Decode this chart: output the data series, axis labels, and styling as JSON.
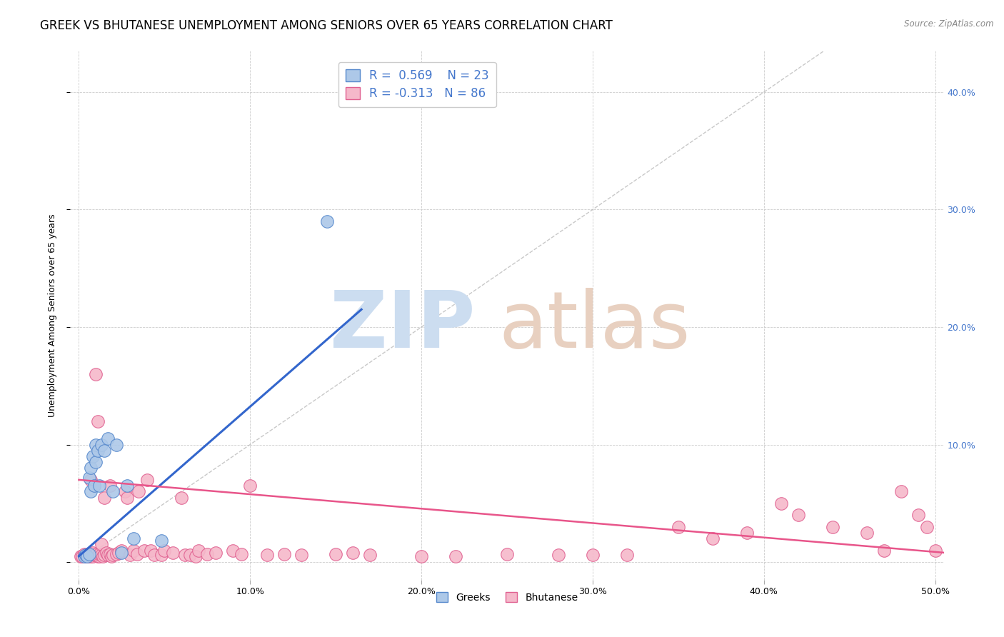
{
  "title": "GREEK VS BHUTANESE UNEMPLOYMENT AMONG SENIORS OVER 65 YEARS CORRELATION CHART",
  "source": "Source: ZipAtlas.com",
  "ylabel": "Unemployment Among Seniors over 65 years",
  "xlim": [
    -0.005,
    0.505
  ],
  "ylim": [
    -0.015,
    0.435
  ],
  "xticks": [
    0.0,
    0.1,
    0.2,
    0.3,
    0.4,
    0.5
  ],
  "yticks": [
    0.0,
    0.1,
    0.2,
    0.3,
    0.4
  ],
  "xtick_labels": [
    "0.0%",
    "10.0%",
    "20.0%",
    "30.0%",
    "40.0%",
    "50.0%"
  ],
  "ytick_labels_right": [
    "",
    "10.0%",
    "20.0%",
    "30.0%",
    "40.0%"
  ],
  "greek_R": 0.569,
  "greek_N": 23,
  "bhutanese_R": -0.313,
  "bhutanese_N": 86,
  "greek_color": "#adc8e8",
  "bhutanese_color": "#f5b8ca",
  "greek_edge_color": "#5588cc",
  "bhutanese_edge_color": "#e06090",
  "greek_line_color": "#3366cc",
  "bhutanese_line_color": "#e8558a",
  "diagonal_color": "#bbbbbb",
  "watermark_zip_color": "#ccddf0",
  "watermark_atlas_color": "#e8d0c0",
  "background_color": "#ffffff",
  "title_fontsize": 12,
  "axis_label_fontsize": 9,
  "tick_fontsize": 9,
  "greek_x": [
    0.003,
    0.004,
    0.005,
    0.006,
    0.006,
    0.007,
    0.007,
    0.008,
    0.009,
    0.01,
    0.01,
    0.011,
    0.012,
    0.013,
    0.015,
    0.017,
    0.02,
    0.022,
    0.025,
    0.028,
    0.032,
    0.048,
    0.145
  ],
  "greek_y": [
    0.005,
    0.006,
    0.005,
    0.007,
    0.072,
    0.06,
    0.08,
    0.09,
    0.065,
    0.085,
    0.1,
    0.095,
    0.065,
    0.1,
    0.095,
    0.105,
    0.06,
    0.1,
    0.008,
    0.065,
    0.02,
    0.018,
    0.29
  ],
  "bhutanese_x": [
    0.001,
    0.002,
    0.003,
    0.003,
    0.004,
    0.004,
    0.005,
    0.005,
    0.005,
    0.006,
    0.006,
    0.007,
    0.007,
    0.007,
    0.008,
    0.008,
    0.009,
    0.009,
    0.01,
    0.01,
    0.01,
    0.011,
    0.011,
    0.012,
    0.012,
    0.013,
    0.013,
    0.014,
    0.015,
    0.015,
    0.016,
    0.017,
    0.018,
    0.018,
    0.019,
    0.02,
    0.022,
    0.023,
    0.025,
    0.027,
    0.028,
    0.03,
    0.032,
    0.034,
    0.035,
    0.038,
    0.04,
    0.042,
    0.044,
    0.048,
    0.05,
    0.055,
    0.06,
    0.062,
    0.065,
    0.068,
    0.07,
    0.075,
    0.08,
    0.09,
    0.095,
    0.1,
    0.11,
    0.12,
    0.13,
    0.15,
    0.16,
    0.17,
    0.2,
    0.22,
    0.25,
    0.28,
    0.3,
    0.32,
    0.35,
    0.37,
    0.39,
    0.41,
    0.42,
    0.44,
    0.46,
    0.47,
    0.48,
    0.49,
    0.495,
    0.5
  ],
  "bhutanese_y": [
    0.005,
    0.005,
    0.006,
    0.007,
    0.005,
    0.006,
    0.005,
    0.006,
    0.007,
    0.005,
    0.006,
    0.005,
    0.006,
    0.07,
    0.005,
    0.008,
    0.006,
    0.065,
    0.006,
    0.007,
    0.16,
    0.005,
    0.12,
    0.005,
    0.007,
    0.006,
    0.015,
    0.005,
    0.006,
    0.055,
    0.008,
    0.006,
    0.007,
    0.065,
    0.005,
    0.006,
    0.007,
    0.008,
    0.01,
    0.06,
    0.055,
    0.006,
    0.01,
    0.007,
    0.06,
    0.01,
    0.07,
    0.01,
    0.006,
    0.006,
    0.01,
    0.008,
    0.055,
    0.006,
    0.006,
    0.005,
    0.01,
    0.007,
    0.008,
    0.01,
    0.007,
    0.065,
    0.006,
    0.007,
    0.006,
    0.007,
    0.008,
    0.006,
    0.005,
    0.005,
    0.007,
    0.006,
    0.006,
    0.006,
    0.03,
    0.02,
    0.025,
    0.05,
    0.04,
    0.03,
    0.025,
    0.01,
    0.06,
    0.04,
    0.03,
    0.01
  ],
  "greek_line_x": [
    0.0,
    0.165
  ],
  "greek_line_y": [
    0.005,
    0.215
  ],
  "bhutanese_line_x": [
    0.0,
    0.505
  ],
  "bhutanese_line_y": [
    0.07,
    0.008
  ]
}
